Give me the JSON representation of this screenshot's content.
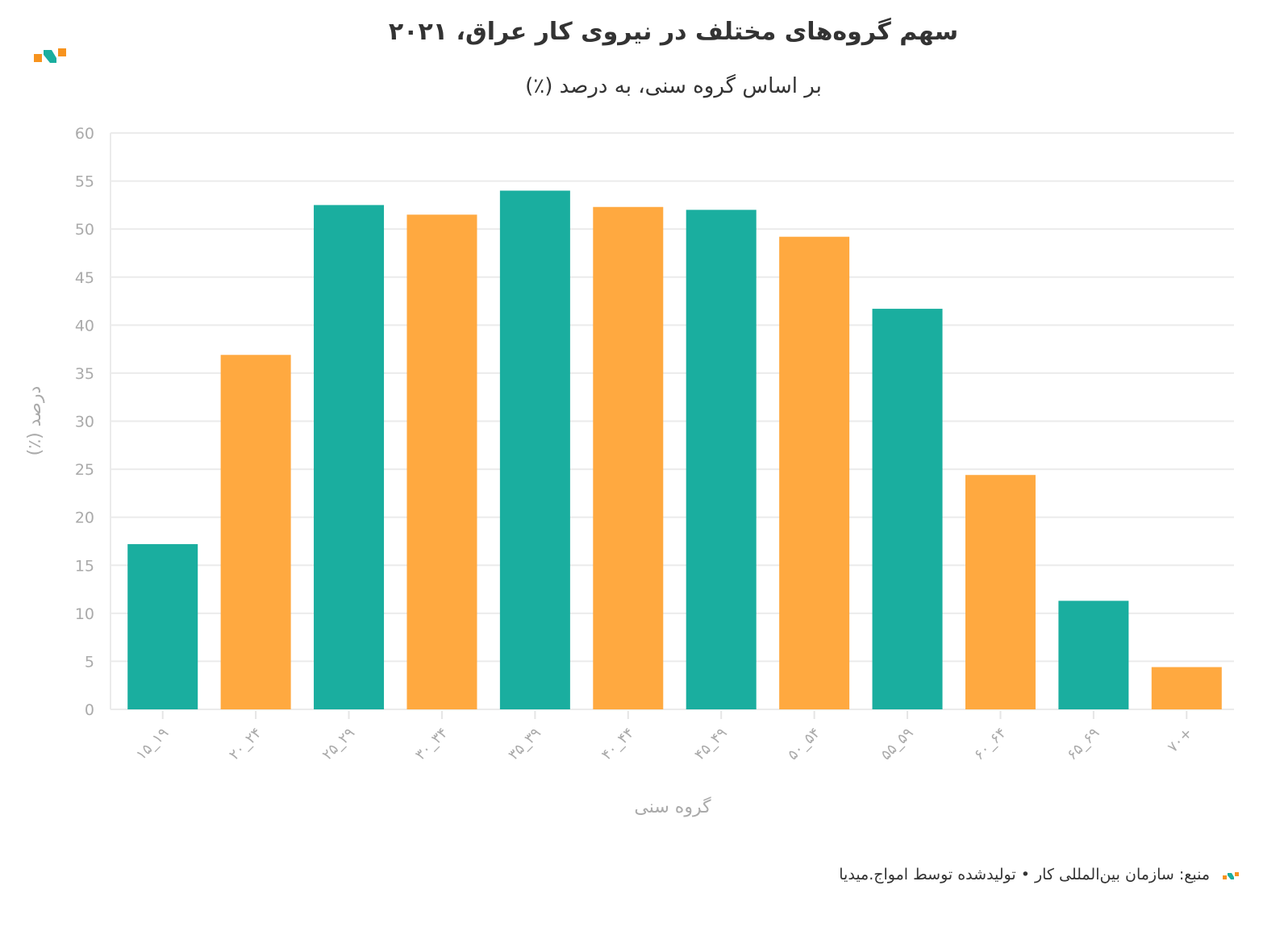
{
  "chart_data": {
    "type": "bar",
    "title": "سهم گروه‌های مختلف در نیروی کار عراق، ۲۰۲۱",
    "subtitle": "بر اساس گروه سنی، به درصد (٪)",
    "xlabel": "گروه سنی",
    "ylabel": "درصد (٪)",
    "ylim": [
      0,
      60
    ],
    "yticks": [
      "0",
      "5",
      "10",
      "15",
      "20",
      "25",
      "30",
      "35",
      "40",
      "45",
      "50",
      "55",
      "60"
    ],
    "grid": true,
    "categories": [
      "۱۵_۱۹",
      "۲۰_۲۴",
      "۲۵_۲۹",
      "۳۰_۳۴",
      "۳۵_۳۹",
      "۴۰_۴۴",
      "۴۵_۴۹",
      "۵۰_۵۴",
      "۵۵_۵۹",
      "۶۰_۶۴",
      "۶۵_۶۹",
      "۷۰+"
    ],
    "values": [
      17.2,
      36.9,
      52.5,
      51.5,
      54.0,
      52.3,
      52.0,
      49.2,
      41.7,
      24.4,
      11.3,
      4.4
    ],
    "colors": [
      "#1aae9f",
      "#ffa940"
    ]
  },
  "footer": {
    "source": "منبع: سازمان بین‌المللی کار • تولیدشده توسط امواج.میدیا"
  }
}
